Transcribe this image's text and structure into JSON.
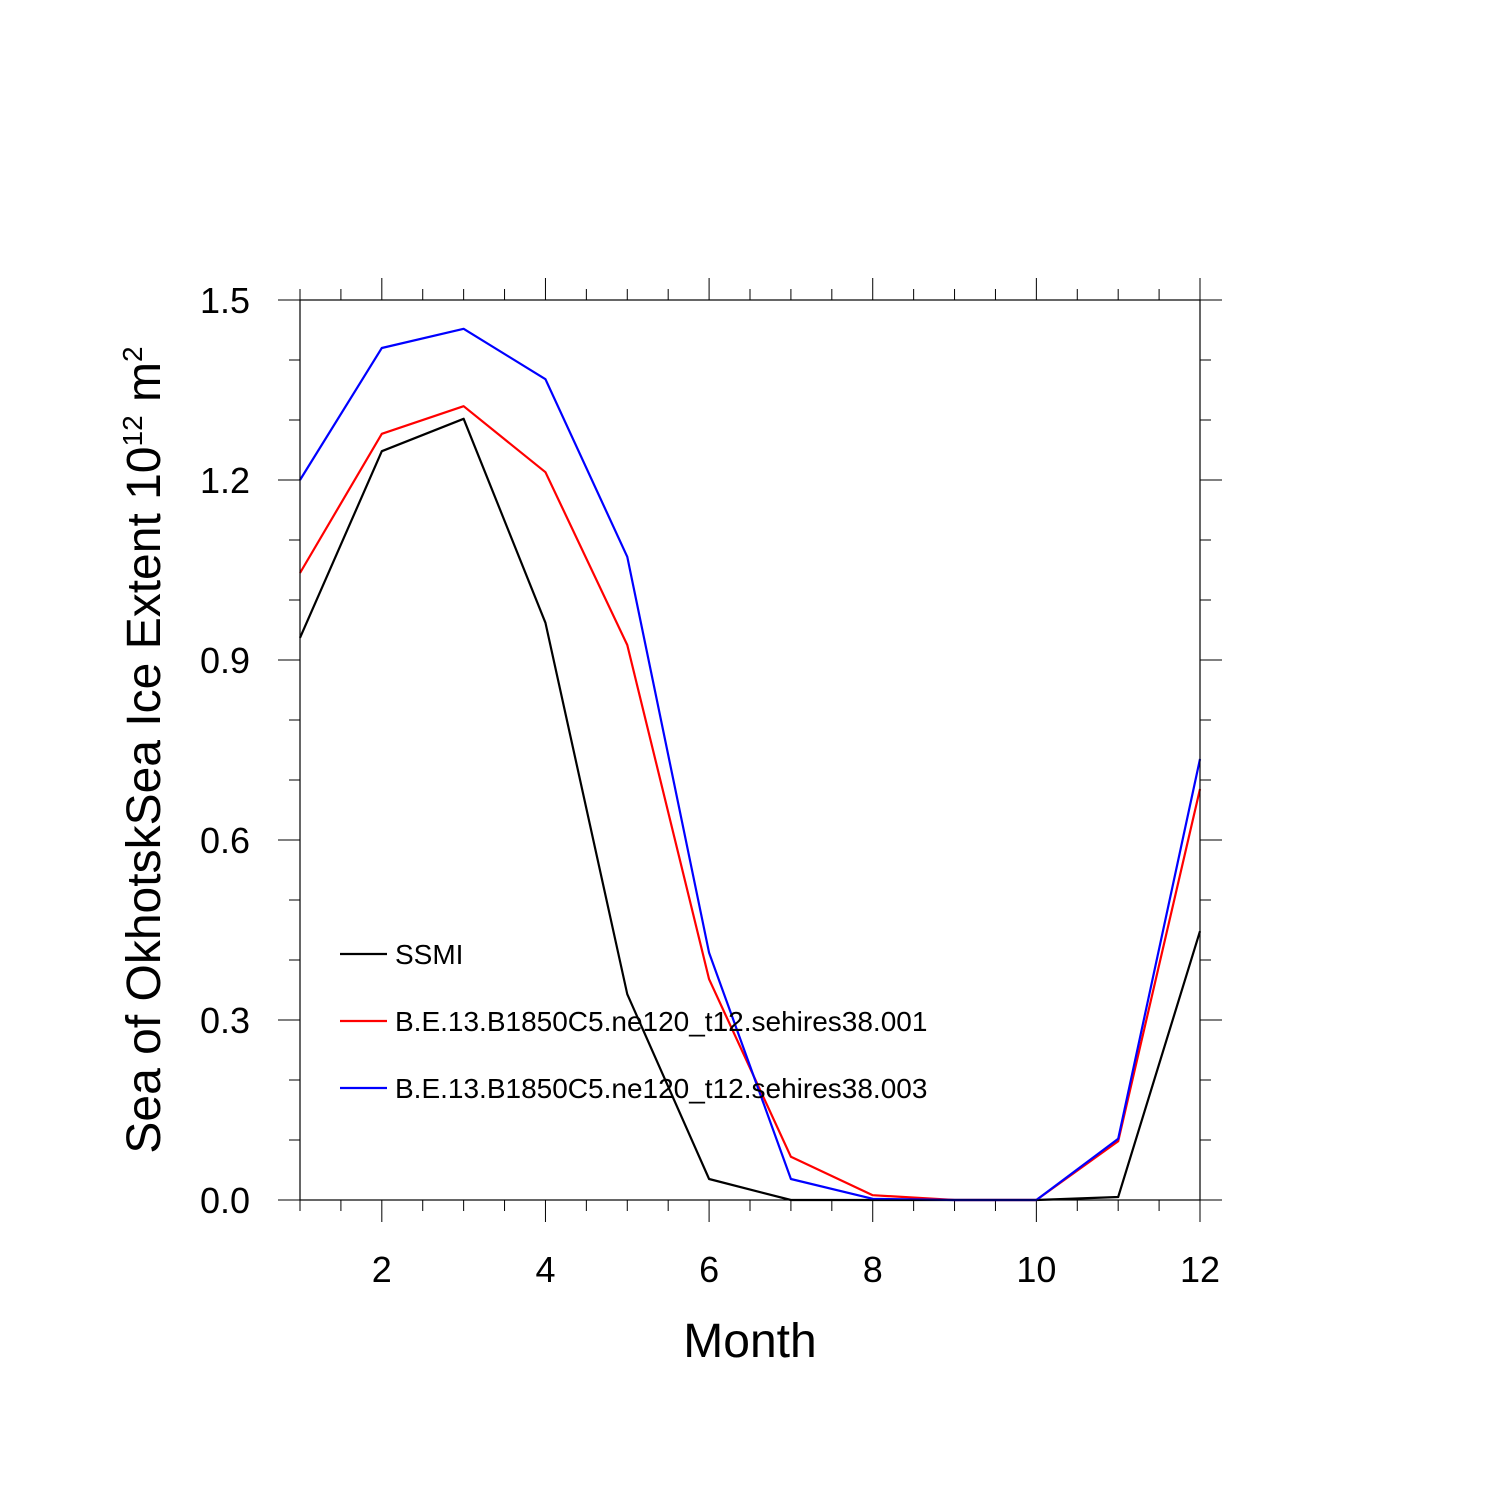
{
  "chart_data": {
    "type": "line",
    "title": "",
    "xlabel": "Month",
    "ylabel": {
      "prefix": "Sea of OkhotskSea Ice Extent 10",
      "exponent1": "12",
      "unit": " m",
      "exponent2": "2"
    },
    "xlim": [
      1,
      12
    ],
    "ylim": [
      0,
      1.5
    ],
    "x_ticks": [
      2,
      4,
      6,
      8,
      10,
      12
    ],
    "x_tick_labels": [
      "2",
      "4",
      "6",
      "8",
      "10",
      "12"
    ],
    "y_ticks": [
      0,
      0.3,
      0.6,
      0.9,
      1.2,
      1.5
    ],
    "y_tick_labels": [
      "0.0",
      "0.3",
      "0.6",
      "0.9",
      "1.2",
      "1.5"
    ],
    "grid": false,
    "legend_position": "lower-left",
    "x": [
      1,
      2,
      3,
      4,
      5,
      6,
      7,
      8,
      9,
      10,
      11,
      12
    ],
    "series": [
      {
        "name": "SSMI",
        "color": "#000000",
        "values": [
          0.937,
          1.248,
          1.302,
          0.962,
          0.343,
          0.035,
          0.0,
          0.0,
          0.0,
          0.0,
          0.005,
          0.448
        ]
      },
      {
        "name": "B.E.13.B1850C5.ne120_t12.sehires38.001",
        "color": "#ff0000",
        "values": [
          1.045,
          1.277,
          1.323,
          1.213,
          0.925,
          0.368,
          0.072,
          0.008,
          0.0,
          0.0,
          0.098,
          0.685
        ]
      },
      {
        "name": "B.E.13.B1850C5.ne120_t12.sehires38.003",
        "color": "#0000ff",
        "values": [
          1.2,
          1.42,
          1.452,
          1.368,
          1.072,
          0.412,
          0.035,
          0.002,
          0.0,
          0.0,
          0.102,
          0.735
        ]
      }
    ]
  }
}
